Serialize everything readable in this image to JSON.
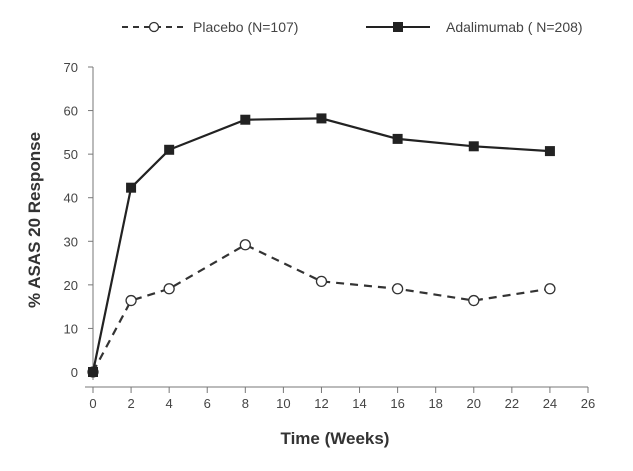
{
  "chart_data": {
    "type": "line",
    "title": "",
    "xlabel": "Time (Weeks)",
    "ylabel": "% ASAS 20 Response",
    "xlim": [
      0,
      26
    ],
    "ylim": [
      0,
      70
    ],
    "xticks": [
      0,
      2,
      4,
      6,
      8,
      10,
      12,
      14,
      16,
      18,
      20,
      22,
      24,
      26
    ],
    "yticks": [
      0,
      10,
      20,
      30,
      40,
      50,
      60,
      70
    ],
    "grid": false,
    "legend_position": "top",
    "series": [
      {
        "name": "Placebo (N=107)",
        "style": "dashed",
        "marker": "open-circle",
        "color": "#333333",
        "x": [
          0,
          2,
          4,
          8,
          12,
          16,
          20,
          24
        ],
        "y": [
          0,
          16.4,
          19.1,
          29.2,
          20.8,
          19.1,
          16.4,
          19.1
        ]
      },
      {
        "name": "Adalimumab ( N=208)",
        "style": "solid",
        "marker": "filled-square",
        "color": "#222222",
        "x": [
          0,
          2,
          4,
          8,
          12,
          16,
          20,
          24
        ],
        "y": [
          0,
          42.3,
          51,
          57.9,
          58.2,
          53.5,
          51.8,
          50.7
        ]
      }
    ]
  }
}
